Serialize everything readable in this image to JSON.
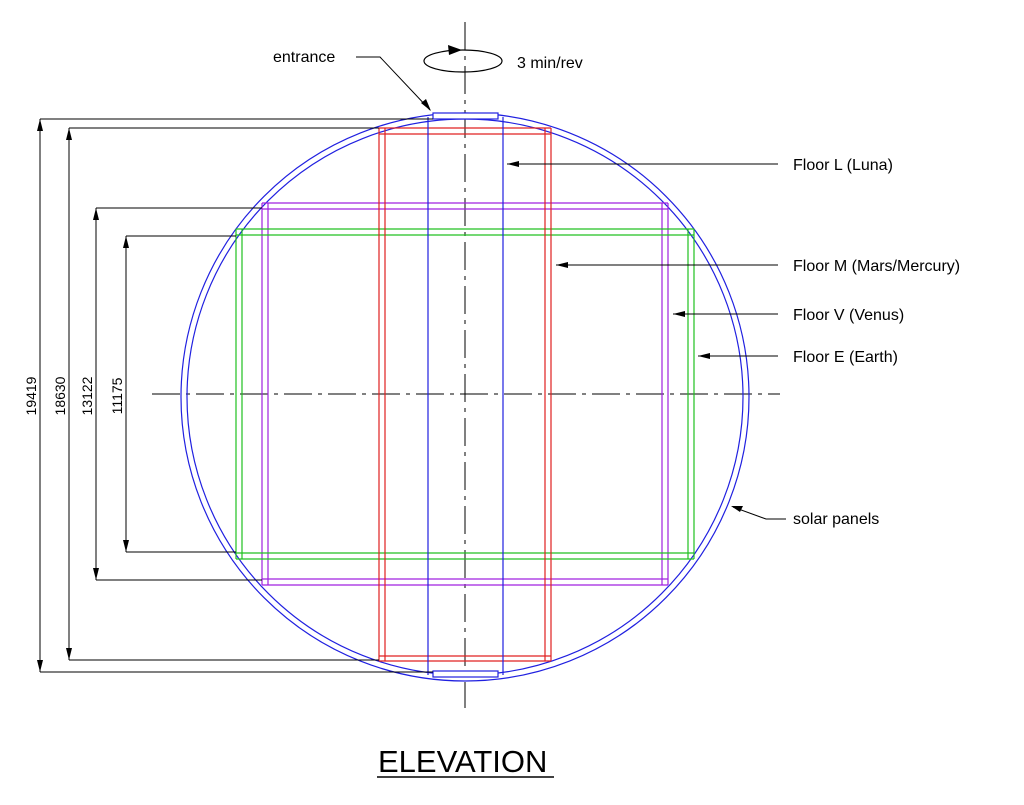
{
  "title": "ELEVATION",
  "rotation": "3 min/rev",
  "labels": {
    "entrance": "entrance",
    "floor_l": "Floor L (Luna)",
    "floor_m": "Floor M (Mars/Mercury)",
    "floor_v": "Floor V (Venus)",
    "floor_e": "Floor E (Earth)",
    "solar_panels": "solar panels"
  },
  "dimensions": [
    "19419",
    "18630",
    "13122",
    "11175"
  ],
  "colors": {
    "sphere": "#2020e0",
    "floor_l": "#2020e0",
    "floor_m": "#e02020",
    "floor_v": "#a020e0",
    "floor_e": "#20c020",
    "lines": "#000000"
  }
}
